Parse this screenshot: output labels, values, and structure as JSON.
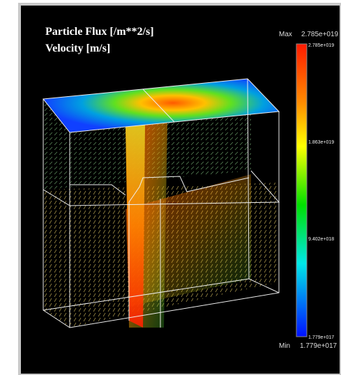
{
  "title": {
    "line1": "Particle Flux [/m**2/s]",
    "line2": "Velocity [m/s]"
  },
  "colorbar": {
    "max_label": "Max",
    "max_value": "2.785e+019",
    "min_label": "Min",
    "min_value": "1.779e+017",
    "ticks": [
      "2.785e+019",
      "1.863e+019",
      "9.402e+018",
      "1.779e+017"
    ]
  }
}
